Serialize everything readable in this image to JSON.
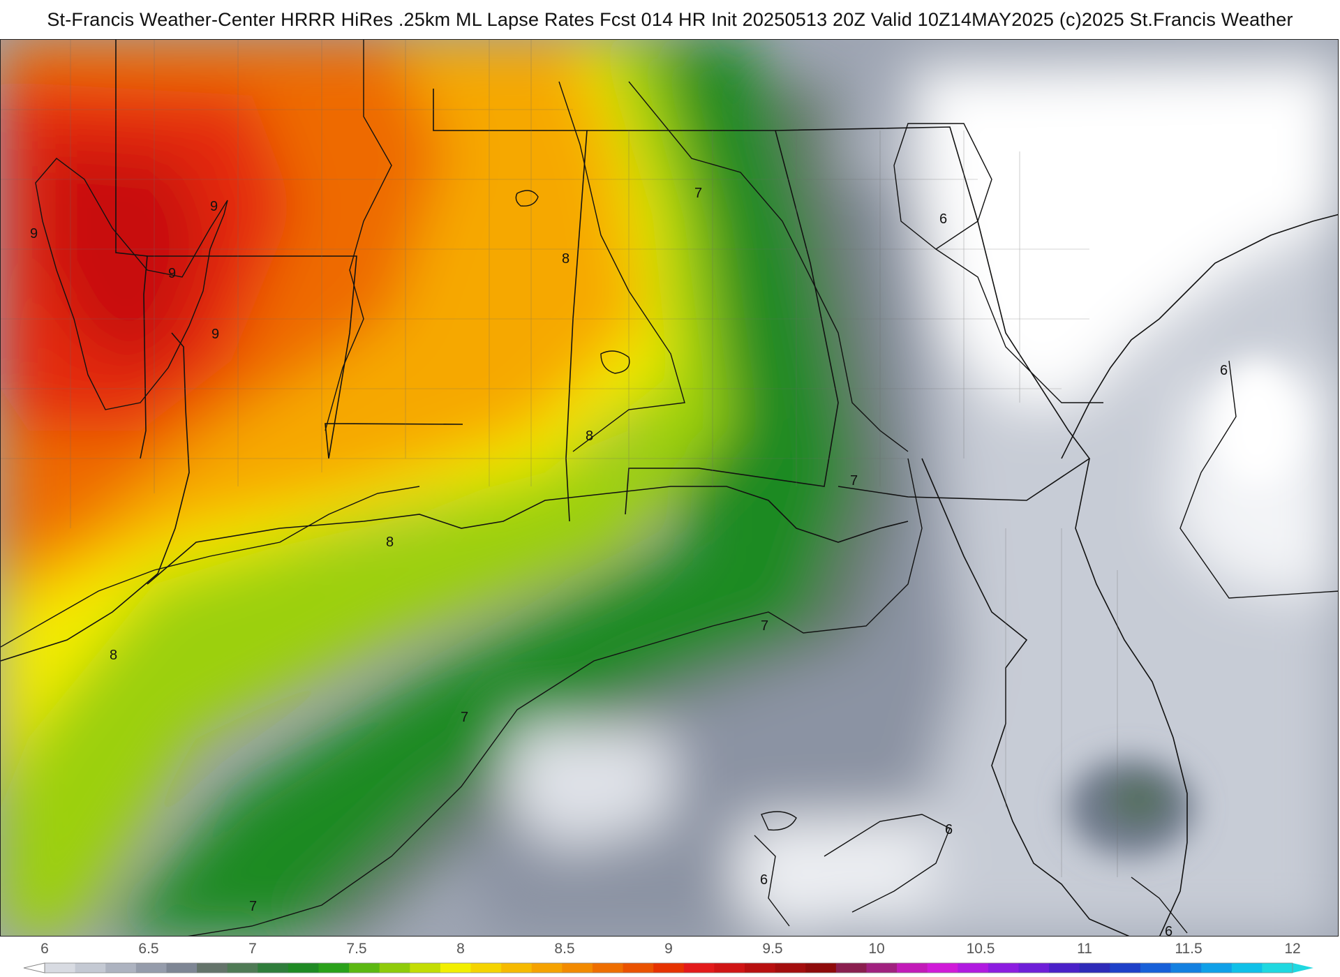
{
  "header": {
    "title": "St-Francis Weather-Center HRRR HiRes .25km ML Lapse Rates  Fcst 014 HR Init 20250513 20Z  Valid 10Z14MAY2025    (c)2025 St.Francis Weather"
  },
  "map": {
    "contour_labels": [
      "9",
      "9",
      "9",
      "9",
      "8",
      "8",
      "8",
      "8",
      "7",
      "7",
      "7",
      "7",
      "7",
      "6",
      "6",
      "6",
      "6",
      "6"
    ]
  },
  "legend": {
    "ticks": [
      "6",
      "6.5",
      "7",
      "7.5",
      "8",
      "8.5",
      "9",
      "9.5",
      "10",
      "10.5",
      "11",
      "11.5",
      "12"
    ],
    "colors": [
      "#d8dbe2",
      "#c4c9d3",
      "#adb3c0",
      "#959cab",
      "#7e8694",
      "#64736a",
      "#4f7a55",
      "#2f7d3b",
      "#1f8a24",
      "#2aa11a",
      "#5cb812",
      "#8fcb0a",
      "#c3dd04",
      "#f2ef00",
      "#f5d400",
      "#f6ba00",
      "#f5a200",
      "#f28a00",
      "#ee6e00",
      "#ea5200",
      "#e63200",
      "#e31a1a",
      "#d01414",
      "#b80f0f",
      "#a30d0d",
      "#8e0a0a",
      "#8a1e4e",
      "#a0207e",
      "#c21ab8",
      "#d01ad8",
      "#b01ae0",
      "#8c1ce0",
      "#6e1ed8",
      "#4a20c8",
      "#2e2ab8",
      "#1e40c8",
      "#1860d8",
      "#1480e0",
      "#10a0e8",
      "#10c0e8",
      "#20d8e0"
    ]
  }
}
